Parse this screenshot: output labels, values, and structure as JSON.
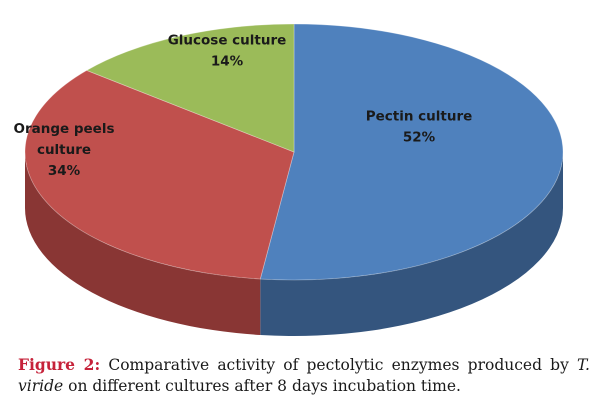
{
  "chart_data": {
    "type": "pie",
    "style": "3d",
    "categories": [
      "Pectin culture",
      "Orange peels culture",
      "Glucose culture"
    ],
    "values": [
      52,
      34,
      14
    ],
    "labels": [
      {
        "lines": [
          "Pectin culture",
          "52%"
        ]
      },
      {
        "lines": [
          "Orange peels",
          "culture",
          "34%"
        ]
      },
      {
        "lines": [
          "Glucose culture",
          "14%"
        ]
      }
    ],
    "colors": [
      "#4f81bd",
      "#c0504d",
      "#9bbb59"
    ],
    "side_colors": [
      "#34557e",
      "#893634",
      "#6c8340"
    ],
    "legend": "none"
  },
  "caption": {
    "label": "Figure 2:",
    "text_before": " Comparative activity of pectolytic enzymes produced by ",
    "italic": "T. viride",
    "text_after": " on different cultures after 8 days incubation time."
  }
}
